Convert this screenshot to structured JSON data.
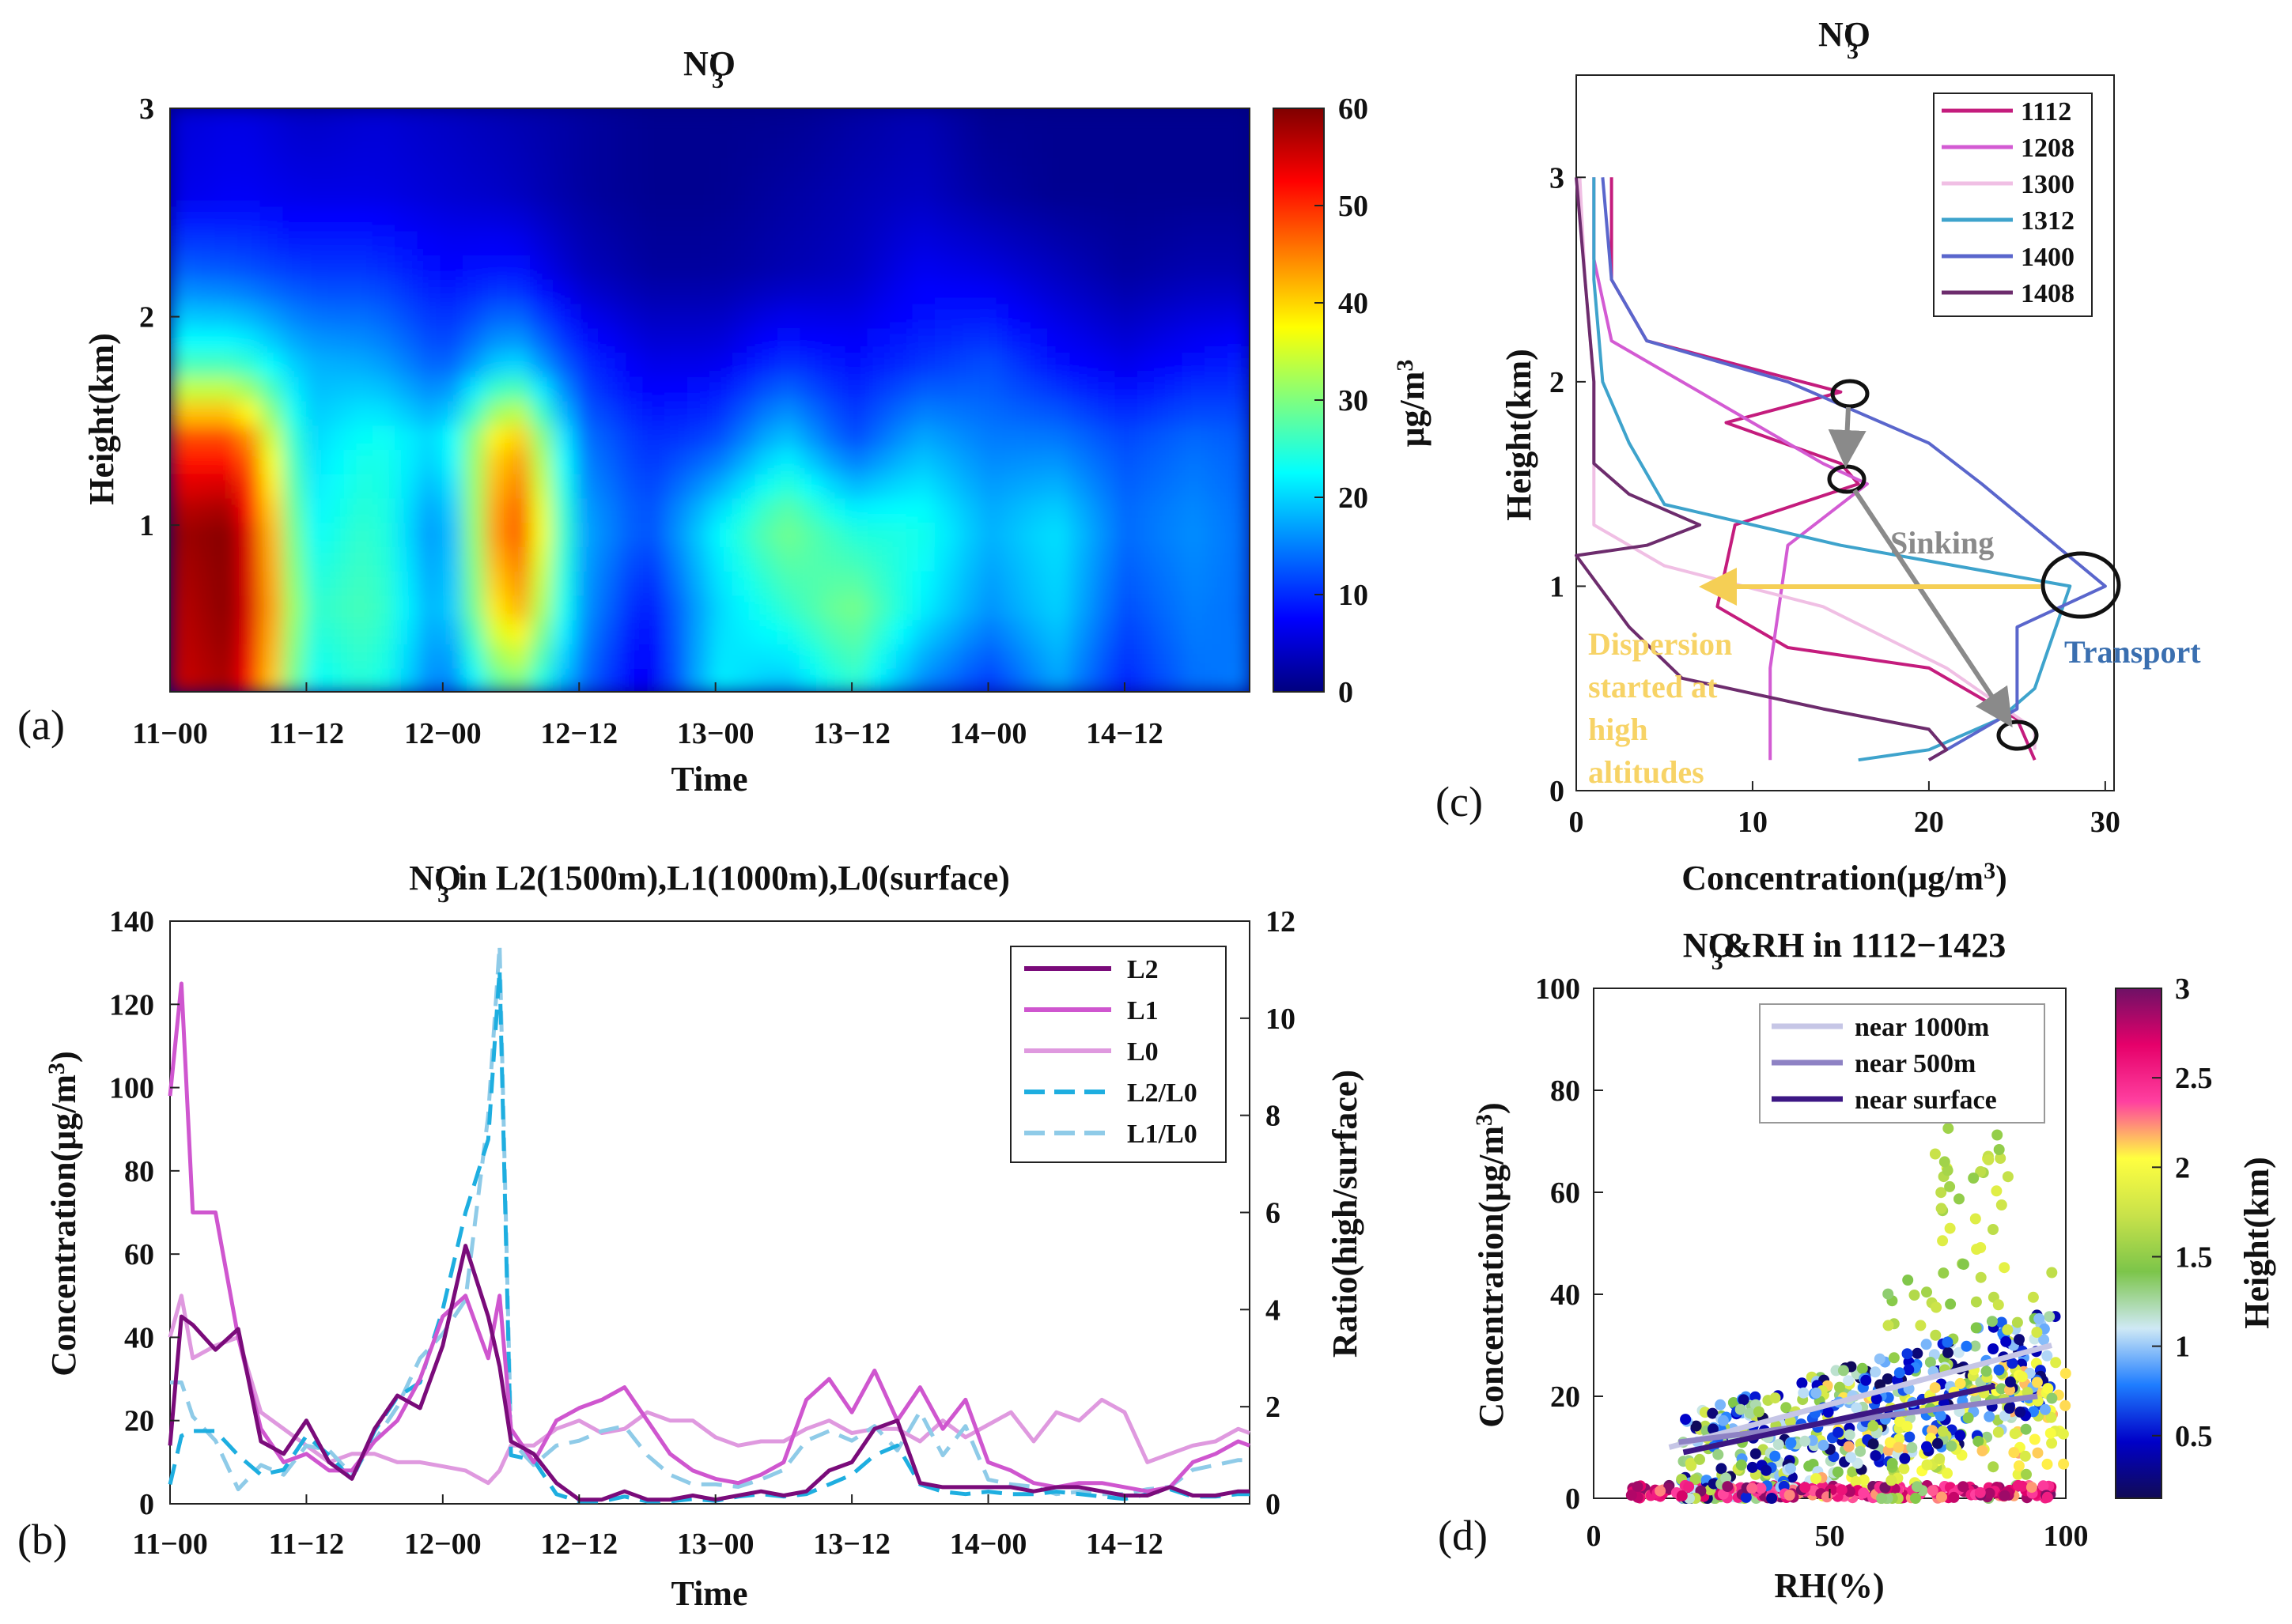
{
  "figure_labels": {
    "a": "(a)",
    "b": "(b)",
    "c": "(c)",
    "d": "(d)"
  },
  "chart_data": [
    {
      "id": "a",
      "type": "heatmap",
      "title": "NO",
      "title_sup": "-",
      "title_sub": "3",
      "xlabel": "Time",
      "ylabel": "Height(km)",
      "x_ticks": [
        "11−00",
        "11−12",
        "12−00",
        "12−12",
        "13−00",
        "13−12",
        "14−00",
        "14−12"
      ],
      "y_ticks": [
        "1",
        "2",
        "3"
      ],
      "ylim": [
        0.2,
        3
      ],
      "colorbar": {
        "label": "μg/m",
        "label_sup": "3",
        "ticks": [
          "0",
          "10",
          "20",
          "30",
          "40",
          "50",
          "60"
        ],
        "range": [
          0,
          60
        ],
        "colors": [
          "#00007f",
          "#0000ff",
          "#007fff",
          "#00ffff",
          "#7fff7f",
          "#ffff00",
          "#ff7f00",
          "#ff0000",
          "#7f0000"
        ]
      },
      "grid_hours": [
        0,
        6,
        12,
        18,
        24,
        30,
        36,
        42,
        48,
        54,
        60,
        66,
        72,
        78,
        84,
        90,
        95
      ],
      "grid_heights": [
        0.2,
        0.6,
        1.0,
        1.4,
        1.8,
        2.2,
        2.6,
        3.0
      ],
      "values": [
        [
          55,
          58,
          22,
          25,
          13,
          30,
          14,
          5,
          22,
          18,
          25,
          15,
          10,
          17,
          9,
          14,
          15
        ],
        [
          56,
          60,
          25,
          27,
          16,
          45,
          17,
          8,
          20,
          25,
          30,
          22,
          16,
          20,
          12,
          15,
          14
        ],
        [
          58,
          60,
          22,
          26,
          14,
          52,
          18,
          12,
          22,
          30,
          24,
          24,
          18,
          21,
          14,
          16,
          14
        ],
        [
          50,
          50,
          20,
          24,
          20,
          45,
          15,
          10,
          12,
          20,
          12,
          18,
          15,
          15,
          12,
          14,
          13
        ],
        [
          25,
          25,
          18,
          17,
          12,
          20,
          10,
          6,
          6,
          10,
          8,
          10,
          12,
          8,
          6,
          8,
          9
        ],
        [
          14,
          13,
          11,
          11,
          8,
          9,
          4,
          2,
          2,
          3,
          4,
          7,
          6,
          4,
          2,
          3,
          3
        ],
        [
          6,
          7,
          6,
          6,
          5,
          4,
          2,
          1,
          1,
          2,
          3,
          4,
          2,
          1,
          1,
          1,
          1
        ],
        [
          5,
          6,
          4,
          5,
          4,
          3,
          2,
          1,
          1,
          1,
          2,
          3,
          1,
          1,
          1,
          1,
          1
        ]
      ]
    },
    {
      "id": "b",
      "type": "line",
      "title": "NO",
      "title_sup": "-",
      "title_sub": "3",
      "title_rest": " in L2(1500m),L1(1000m),L0(surface)",
      "xlabel": "Time",
      "ylabel": "Concentration(μg/m",
      "ylabel_sup": "3",
      "ylabel_end": ")",
      "y2label": "Ratio(high/surface)",
      "x_ticks": [
        "11−00",
        "11−12",
        "12−00",
        "12−12",
        "13−00",
        "13−12",
        "14−00",
        "14−12"
      ],
      "y_ticks": [
        "0",
        "20",
        "40",
        "60",
        "80",
        "100",
        "120",
        "140"
      ],
      "y2_ticks": [
        "0",
        "2",
        "4",
        "6",
        "8",
        "10",
        "12"
      ],
      "xlim": [
        0,
        95
      ],
      "ylim": [
        0,
        140
      ],
      "y2lim": [
        0,
        12
      ],
      "x": [
        0,
        1,
        2,
        4,
        6,
        8,
        10,
        12,
        14,
        16,
        18,
        20,
        22,
        24,
        26,
        28,
        29,
        30,
        32,
        34,
        36,
        38,
        40,
        42,
        44,
        46,
        48,
        50,
        52,
        54,
        56,
        58,
        60,
        62,
        64,
        66,
        68,
        70,
        72,
        74,
        76,
        78,
        80,
        82,
        84,
        86,
        88,
        90,
        92,
        94,
        95
      ],
      "series": [
        {
          "name": "L2",
          "axis": "left",
          "color": "#7a0b7a",
          "dash": "solid",
          "values": [
            14,
            45,
            43,
            37,
            42,
            15,
            12,
            20,
            10,
            6,
            18,
            26,
            23,
            38,
            62,
            45,
            33,
            15,
            12,
            5,
            1,
            1,
            3,
            1,
            1,
            2,
            1,
            2,
            3,
            2,
            3,
            8,
            10,
            18,
            20,
            5,
            4,
            4,
            4,
            4,
            3,
            4,
            4,
            3,
            2,
            2,
            4,
            2,
            2,
            3,
            3
          ]
        },
        {
          "name": "L1",
          "axis": "left",
          "color": "#cf56cf",
          "dash": "solid",
          "values": [
            98,
            125,
            70,
            70,
            40,
            18,
            10,
            12,
            8,
            8,
            15,
            20,
            30,
            45,
            50,
            35,
            50,
            18,
            10,
            20,
            23,
            25,
            28,
            20,
            12,
            8,
            6,
            5,
            7,
            10,
            25,
            30,
            22,
            32,
            20,
            28,
            18,
            25,
            10,
            8,
            5,
            4,
            5,
            5,
            4,
            3,
            4,
            10,
            12,
            15,
            14
          ]
        },
        {
          "name": "L0",
          "axis": "left",
          "color": "#df99df",
          "dash": "solid",
          "values": [
            40,
            50,
            35,
            38,
            40,
            22,
            18,
            14,
            10,
            12,
            12,
            10,
            10,
            9,
            8,
            5,
            8,
            14,
            14,
            18,
            20,
            17,
            18,
            22,
            20,
            20,
            16,
            14,
            15,
            15,
            18,
            20,
            17,
            18,
            18,
            15,
            20,
            16,
            19,
            22,
            15,
            22,
            20,
            25,
            22,
            10,
            12,
            14,
            15,
            18,
            17
          ]
        },
        {
          "name": "L2/L0",
          "axis": "right",
          "color": "#1eaee0",
          "dash": "long",
          "values": [
            0.4,
            1.4,
            1.5,
            1.5,
            1.0,
            0.6,
            0.7,
            1.4,
            1.0,
            0.5,
            1.5,
            2.2,
            2.5,
            4.0,
            6.0,
            7.5,
            11,
            1.0,
            0.9,
            0.2,
            0.05,
            0.05,
            0.15,
            0.05,
            0.05,
            0.1,
            0.06,
            0.15,
            0.2,
            0.15,
            0.2,
            0.4,
            0.6,
            1.0,
            1.2,
            0.4,
            0.25,
            0.2,
            0.25,
            0.2,
            0.2,
            0.25,
            0.2,
            0.15,
            0.1,
            0.2,
            0.3,
            0.15,
            0.15,
            0.2,
            0.2
          ]
        },
        {
          "name": "L1/L0",
          "axis": "right",
          "color": "#8fcbe8",
          "dash": "long",
          "values": [
            2.5,
            2.5,
            1.8,
            1.3,
            0.3,
            0.8,
            0.6,
            1.2,
            1.1,
            0.6,
            1.3,
            2.0,
            3.0,
            3.5,
            4.2,
            8,
            11.5,
            1.3,
            0.8,
            1.2,
            1.3,
            1.5,
            1.6,
            1.0,
            0.6,
            0.4,
            0.4,
            0.35,
            0.5,
            0.7,
            1.3,
            1.5,
            1.3,
            1.6,
            1.1,
            1.9,
            1.0,
            1.6,
            0.5,
            0.4,
            0.35,
            0.2,
            0.25,
            0.2,
            0.2,
            0.3,
            0.35,
            0.7,
            0.8,
            0.9,
            0.9
          ]
        }
      ]
    },
    {
      "id": "c",
      "type": "line",
      "title": "NO",
      "title_sup": "-",
      "title_sub": "3",
      "xlabel": "Concentration(μg/m",
      "xlabel_sup": "3",
      "xlabel_end": ")",
      "ylabel": "Height(km)",
      "x_ticks": [
        "0",
        "10",
        "20",
        "30"
      ],
      "y_ticks": [
        "0",
        "1",
        "2",
        "3"
      ],
      "xlim": [
        0,
        30.5
      ],
      "ylim": [
        0,
        3.5
      ],
      "annotations": {
        "sinking": "Sinking",
        "transport": "Transport",
        "dispersion": [
          "Dispersion",
          "started at",
          "high",
          "altitudes"
        ]
      },
      "series": [
        {
          "name": "1112",
          "color": "#c41c7d",
          "points": [
            [
              2,
              3.0
            ],
            [
              2,
              2.5
            ],
            [
              4,
              2.2
            ],
            [
              15,
              1.95
            ],
            [
              8.5,
              1.8
            ],
            [
              15,
              1.6
            ],
            [
              16,
              1.5
            ],
            [
              9,
              1.3
            ],
            [
              8,
              0.9
            ],
            [
              12,
              0.7
            ],
            [
              20,
              0.6
            ],
            [
              25,
              0.35
            ],
            [
              26,
              0.15
            ]
          ]
        },
        {
          "name": "1208",
          "color": "#d35bd3",
          "points": [
            [
              1,
              3.0
            ],
            [
              1,
              2.6
            ],
            [
              2,
              2.2
            ],
            [
              10,
              1.8
            ],
            [
              14,
              1.6
            ],
            [
              16.5,
              1.5
            ],
            [
              12,
              1.2
            ],
            [
              11,
              0.6
            ],
            [
              11,
              0.15
            ]
          ]
        },
        {
          "name": "1300",
          "color": "#f0bfe4",
          "points": [
            [
              0.2,
              3.0
            ],
            [
              0.5,
              2.5
            ],
            [
              1,
              2.0
            ],
            [
              1,
              1.5
            ],
            [
              1,
              1.3
            ],
            [
              5,
              1.1
            ],
            [
              14,
              0.9
            ],
            [
              21,
              0.6
            ],
            [
              26,
              0.3
            ],
            [
              26,
              0.2
            ]
          ]
        },
        {
          "name": "1312",
          "color": "#3ea3cc",
          "points": [
            [
              1,
              3.0
            ],
            [
              1,
              2.5
            ],
            [
              1.5,
              2.0
            ],
            [
              3,
              1.7
            ],
            [
              5,
              1.4
            ],
            [
              15,
              1.2
            ],
            [
              28,
              1.0
            ],
            [
              26,
              0.5
            ],
            [
              24,
              0.35
            ],
            [
              20,
              0.2
            ],
            [
              16,
              0.15
            ]
          ]
        },
        {
          "name": "1400",
          "color": "#5a66cc",
          "points": [
            [
              1.5,
              3.0
            ],
            [
              2,
              2.5
            ],
            [
              4,
              2.2
            ],
            [
              12,
              2.0
            ],
            [
              20,
              1.7
            ],
            [
              23,
              1.5
            ],
            [
              30,
              1.0
            ],
            [
              25,
              0.8
            ],
            [
              25,
              0.4
            ],
            [
              20,
              0.15
            ]
          ]
        },
        {
          "name": "1408",
          "color": "#6d2c6d",
          "points": [
            [
              0,
              3.0
            ],
            [
              0.5,
              2.5
            ],
            [
              1,
              2.0
            ],
            [
              1,
              1.6
            ],
            [
              3,
              1.45
            ],
            [
              7,
              1.3
            ],
            [
              4,
              1.2
            ],
            [
              0,
              1.15
            ],
            [
              3,
              0.8
            ],
            [
              6,
              0.55
            ],
            [
              14,
              0.4
            ],
            [
              20,
              0.3
            ],
            [
              21,
              0.2
            ],
            [
              20,
              0.15
            ]
          ]
        }
      ]
    },
    {
      "id": "d",
      "type": "scatter",
      "title": "NO",
      "title_sup": "-",
      "title_sub": "3",
      "title_rest": "&RH in 1112−1423",
      "xlabel": "RH(%)",
      "ylabel": "Concentration(μg/m",
      "ylabel_sup": "3",
      "ylabel_end": ")",
      "x_ticks": [
        "0",
        "50",
        "100"
      ],
      "y_ticks": [
        "0",
        "20",
        "40",
        "60",
        "80",
        "100"
      ],
      "xlim": [
        0,
        100
      ],
      "ylim": [
        0,
        100
      ],
      "colorbar": {
        "label": "Height(km)",
        "ticks": [
          "0.5",
          "1",
          "1.5",
          "2",
          "2.5",
          "3"
        ],
        "range": [
          0.15,
          3
        ],
        "colors": [
          "#110b55",
          "#0000c8",
          "#1e7dff",
          "#cfe9f5",
          "#7cc54a",
          "#c9e24a",
          "#ffff40",
          "#ff40a0",
          "#e6006a",
          "#6e1166"
        ]
      },
      "fits": [
        {
          "name": "near 1000m",
          "color": "#c6c6e6",
          "x0": 16,
          "y0": 10,
          "x1": 97,
          "y1": 30
        },
        {
          "name": "near 500m",
          "color": "#8e82c4",
          "x0": 18,
          "y0": 11,
          "x1": 94,
          "y1": 20
        },
        {
          "name": "near surface",
          "color": "#3c1784",
          "x0": 19,
          "y0": 9,
          "x1": 85,
          "y1": 22
        }
      ]
    }
  ]
}
